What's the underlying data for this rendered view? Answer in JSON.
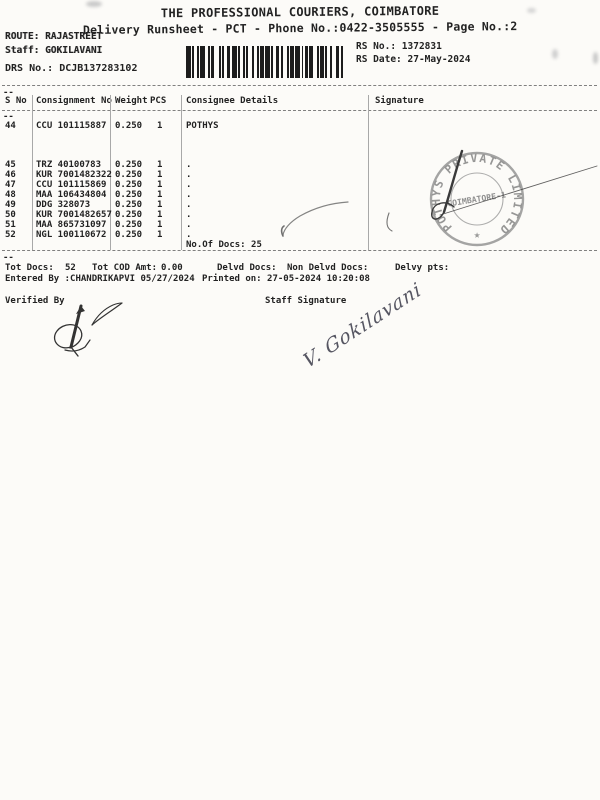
{
  "header": {
    "title": "THE PROFESSIONAL COURIERS, COIMBATORE",
    "subtitle": "Delivery Runsheet - PCT - Phone No.:0422-3505555 - Page No.:2"
  },
  "meta": {
    "route_label": "ROUTE:",
    "route": "RAJASTREET",
    "staff_label": "Staff:",
    "staff": "GOKILAVANI",
    "drs_label": "DRS No.:",
    "drs": "DCJB137283102",
    "rs_no_label": "RS No.:",
    "rs_no": "1372831",
    "rs_date_label": "RS Date:",
    "rs_date": "27-May-2024"
  },
  "table": {
    "headers": {
      "sno": "S No",
      "consignment": "Consignment No",
      "weight": "Weight",
      "pcs": "PCS",
      "consignee": "Consignee Details",
      "signature": "Signature"
    },
    "rows": [
      {
        "sno": "44",
        "consignment": "CCU 101115887",
        "weight": "0.250",
        "pcs": "1",
        "consignee": "POTHYS"
      },
      {
        "sno": "45",
        "consignment": "TRZ 40100783",
        "weight": "0.250",
        "pcs": "1",
        "consignee": "."
      },
      {
        "sno": "46",
        "consignment": "KUR 7001482322",
        "weight": "0.250",
        "pcs": "1",
        "consignee": "."
      },
      {
        "sno": "47",
        "consignment": "CCU 101115869",
        "weight": "0.250",
        "pcs": "1",
        "consignee": "."
      },
      {
        "sno": "48",
        "consignment": "MAA 106434804",
        "weight": "0.250",
        "pcs": "1",
        "consignee": "."
      },
      {
        "sno": "49",
        "consignment": "DDG 328073",
        "weight": "0.250",
        "pcs": "1",
        "consignee": "."
      },
      {
        "sno": "50",
        "consignment": "KUR 7001482657",
        "weight": "0.250",
        "pcs": "1",
        "consignee": "."
      },
      {
        "sno": "51",
        "consignment": "MAA 865731097",
        "weight": "0.250",
        "pcs": "1",
        "consignee": "."
      },
      {
        "sno": "52",
        "consignment": "NGL 100110672",
        "weight": "0.250",
        "pcs": "1",
        "consignee": "."
      }
    ],
    "no_of_docs": "No.Of Docs: 25",
    "continuation_mark": "--"
  },
  "totals": {
    "tot_docs_label": "Tot Docs:",
    "tot_docs": "52",
    "tot_cod_label": "Tot COD Amt:",
    "tot_cod": "0.00",
    "delvd_label": "Delvd Docs:",
    "non_delvd_label": "Non Delvd Docs:",
    "delvy_label": "Delvy pts:",
    "entered_by": "Entered By :CHANDRIKAPVI 05/27/2024",
    "printed_on": "Printed on: 27-05-2024 10:20:08"
  },
  "footer": {
    "verified_by": "Verified By",
    "staff_signature": "Staff Signature",
    "handwritten_signature": "V. Gokilavani"
  },
  "stamp": {
    "ring_text": "POTHYS PRIVATE LIMITED",
    "center_text": "COIMBATORE-1",
    "star": "★",
    "ink_color": "#8a8a8a"
  },
  "colors": {
    "paper": "#fcfbf8",
    "ink": "#222222",
    "stamp_ink": "#8a8a8a",
    "pen_ink": "#3a3a3a"
  }
}
